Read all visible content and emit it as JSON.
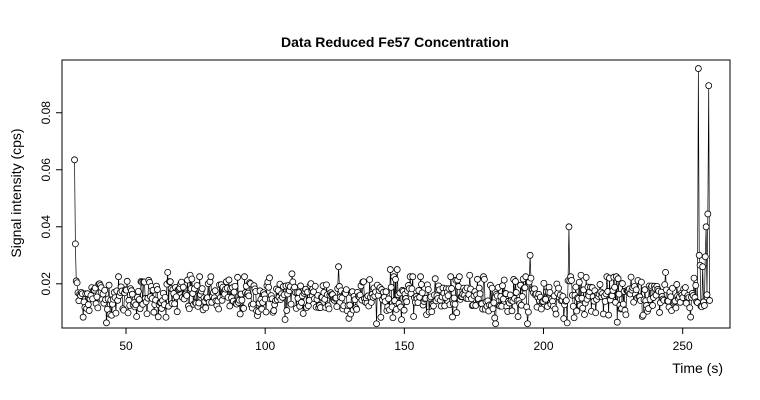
{
  "chart_data": {
    "type": "line",
    "marker": "open-circle",
    "title": "Data Reduced Fe57 Concentration",
    "xlabel": "Time (s)",
    "ylabel": "Signal intensity (cps)",
    "xlim": [
      27,
      267
    ],
    "ylim": [
      0.0045,
      0.0985
    ],
    "xticks": [
      50,
      100,
      150,
      200,
      250
    ],
    "yticks": [
      0.02,
      0.04,
      0.06,
      0.08
    ],
    "ytick_labels": [
      "0.02",
      "0.04",
      "0.06",
      "0.08"
    ],
    "sampling_interval_s": 0.31,
    "n_points": 737,
    "x_start": 31.5,
    "baseline": 0.0155,
    "noise_sd": 0.0035,
    "spikes": [
      {
        "x": 31.6,
        "y": 0.0635
      },
      {
        "x": 31.9,
        "y": 0.034
      },
      {
        "x": 32.2,
        "y": 0.021
      },
      {
        "x": 65.0,
        "y": 0.024
      },
      {
        "x": 73.0,
        "y": 0.023
      },
      {
        "x": 109.5,
        "y": 0.0235
      },
      {
        "x": 126.5,
        "y": 0.026
      },
      {
        "x": 145.0,
        "y": 0.025
      },
      {
        "x": 147.5,
        "y": 0.025
      },
      {
        "x": 173.5,
        "y": 0.023
      },
      {
        "x": 195.2,
        "y": 0.03
      },
      {
        "x": 195.5,
        "y": 0.022
      },
      {
        "x": 209.0,
        "y": 0.04
      },
      {
        "x": 209.3,
        "y": 0.021
      },
      {
        "x": 213.5,
        "y": 0.023
      },
      {
        "x": 244.0,
        "y": 0.024
      },
      {
        "x": 254.0,
        "y": 0.022
      },
      {
        "x": 255.5,
        "y": 0.0955
      },
      {
        "x": 255.8,
        "y": 0.03
      },
      {
        "x": 256.2,
        "y": 0.0265
      },
      {
        "x": 257.3,
        "y": 0.026
      },
      {
        "x": 258.0,
        "y": 0.0295
      },
      {
        "x": 258.5,
        "y": 0.04
      },
      {
        "x": 259.0,
        "y": 0.0445
      },
      {
        "x": 259.5,
        "y": 0.0895
      }
    ]
  }
}
